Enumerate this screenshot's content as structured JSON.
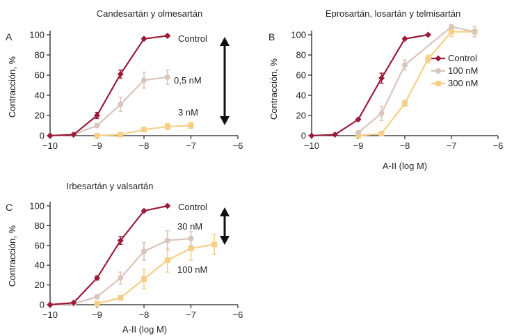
{
  "colors": {
    "control": "#9b1b3a",
    "tan": "#d9c5bb",
    "yellow": "#f6cf86",
    "axis": "#222222",
    "arrow": "#111111"
  },
  "chart_data": [
    {
      "type": "line",
      "panel": "A",
      "title": "Candesartán y olmesartán",
      "xlabel": "",
      "ylabel": "Contracción, %",
      "xlim": [
        -10,
        -6
      ],
      "ylim": [
        0,
        100
      ],
      "xticks": [
        "−10",
        "−9",
        "−8",
        "−7",
        "−6"
      ],
      "yticks": [
        "0",
        "20",
        "40",
        "60",
        "80",
        "100"
      ],
      "legend": "inline labels",
      "double_arrow": true,
      "series": [
        {
          "label": "Control",
          "color": "control",
          "marker": "diamond",
          "x": [
            -10,
            -9.5,
            -9,
            -8.5,
            -8,
            -7.5
          ],
          "y": [
            0,
            1,
            20,
            61,
            96,
            99
          ],
          "err": [
            0,
            0,
            3,
            4,
            1,
            1
          ]
        },
        {
          "label": "0,5 nM",
          "color": "tan",
          "marker": "circle",
          "x": [
            -10,
            -9.5,
            -9,
            -8.5,
            -8,
            -7.5
          ],
          "y": [
            0,
            1,
            10,
            31,
            55,
            58
          ],
          "err": [
            0,
            0,
            2,
            7,
            8,
            7
          ]
        },
        {
          "label": "3 nM",
          "color": "yellow",
          "marker": "square",
          "x": [
            -9,
            -8.5,
            -8,
            -7.5,
            -7
          ],
          "y": [
            0,
            1,
            6,
            9,
            10
          ],
          "err": [
            0,
            0,
            2,
            3,
            3
          ]
        }
      ]
    },
    {
      "type": "line",
      "panel": "B",
      "title": "Eprosartán, losartán y telmisartán",
      "xlabel": "A-II (log M)",
      "ylabel": "Contracción, %",
      "xlim": [
        -10,
        -6
      ],
      "ylim": [
        0,
        100
      ],
      "xticks": [
        "−10",
        "−9",
        "−8",
        "−7",
        "−6"
      ],
      "yticks": [
        "0",
        "20",
        "40",
        "60",
        "80",
        "100"
      ],
      "legend": "right",
      "double_arrow": false,
      "series": [
        {
          "label": "Control",
          "color": "control",
          "marker": "diamond",
          "x": [
            -10,
            -9.5,
            -9,
            -8.5,
            -8,
            -7.5
          ],
          "y": [
            0,
            1,
            16,
            57,
            96,
            100
          ],
          "err": [
            0,
            0,
            1,
            5,
            1,
            1
          ]
        },
        {
          "label": "100 nM",
          "color": "tan",
          "marker": "circle",
          "x": [
            -9,
            -8.5,
            -8,
            -7,
            -6.5
          ],
          "y": [
            3,
            22,
            70,
            108,
            103
          ],
          "err": [
            0,
            7,
            5,
            2,
            5
          ]
        },
        {
          "label": "300 nM",
          "color": "yellow",
          "marker": "square",
          "x": [
            -9,
            -8.5,
            -8,
            -7.5,
            -7,
            -6.5
          ],
          "y": [
            0,
            2,
            32,
            76,
            103,
            103
          ],
          "err": [
            0,
            0,
            3,
            4,
            5,
            5
          ]
        }
      ]
    },
    {
      "type": "line",
      "panel": "C",
      "title": "Irbesartán y valsartán",
      "xlabel": "A-II (log M)",
      "ylabel": "Contracción, %",
      "xlim": [
        -10,
        -6
      ],
      "ylim": [
        0,
        100
      ],
      "xticks": [
        "−10",
        "−9",
        "−8",
        "−7",
        "−6"
      ],
      "yticks": [
        "0",
        "20",
        "40",
        "60",
        "80",
        "100"
      ],
      "legend": "inline labels",
      "double_arrow": true,
      "series": [
        {
          "label": "Control",
          "color": "control",
          "marker": "diamond",
          "x": [
            -10,
            -9.5,
            -9,
            -8.5,
            -8,
            -7.5
          ],
          "y": [
            0,
            2,
            27,
            65,
            95,
            100
          ],
          "err": [
            0,
            0,
            2,
            4,
            1,
            1
          ]
        },
        {
          "label": "30 nM",
          "color": "tan",
          "marker": "circle",
          "x": [
            -10,
            -9.5,
            -9,
            -8.5,
            -8,
            -7.5,
            -7
          ],
          "y": [
            0,
            1,
            8,
            27,
            54,
            65,
            67
          ],
          "err": [
            0,
            0,
            2,
            6,
            9,
            10,
            7
          ]
        },
        {
          "label": "100 nM",
          "color": "yellow",
          "marker": "square",
          "x": [
            -9,
            -8.5,
            -8,
            -7.5,
            -7,
            -6.5
          ],
          "y": [
            1,
            7,
            26,
            45,
            57,
            61
          ],
          "err": [
            0,
            2,
            10,
            12,
            12,
            10
          ]
        }
      ]
    }
  ]
}
